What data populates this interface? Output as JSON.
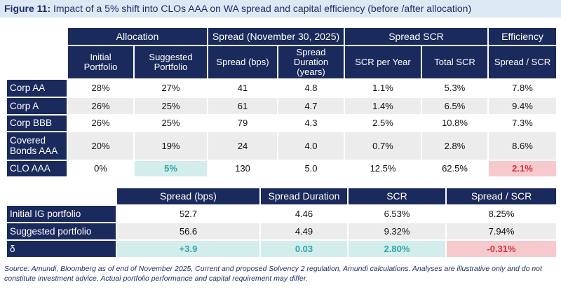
{
  "title": {
    "label": "Figure 11:",
    "text": "Impact of a 5% shift into CLOs AAA on WA spread and capital efficiency (before /after allocation)"
  },
  "table1": {
    "groups": [
      "Allocation",
      "Spread (November 30, 2025)",
      "Spread SCR",
      "Efficiency"
    ],
    "columns": [
      "Initial Portfolio",
      "Suggested Portfolio",
      "Spread (bps)",
      "Spread Duration (years)",
      "SCR per Year",
      "Total SCR",
      "Spread / SCR"
    ],
    "rows": [
      [
        "Corp AA",
        "28%",
        "27%",
        "41",
        "4.8",
        "1.1%",
        "5.3%",
        "7.8%"
      ],
      [
        "Corp A",
        "26%",
        "25%",
        "61",
        "4.7",
        "1.4%",
        "6.5%",
        "9.4%"
      ],
      [
        "Corp BBB",
        "26%",
        "25%",
        "79",
        "4.3",
        "2.5%",
        "10.8%",
        "7.3%"
      ],
      [
        "Covered Bonds AAA",
        "20%",
        "19%",
        "24",
        "4.0",
        "0.7%",
        "2.8%",
        "8.6%"
      ],
      [
        "CLO AAA",
        "0%",
        "5%",
        "130",
        "5.0",
        "12.5%",
        "62.5%",
        "2.1%"
      ]
    ]
  },
  "table2": {
    "columns": [
      "Spread (bps)",
      "Spread Duration",
      "SCR",
      "Spread / SCR"
    ],
    "rows": [
      [
        "Initial IG portfolio",
        "52.7",
        "4.46",
        "6.53%",
        "8.25%"
      ],
      [
        "Suggested portfolio",
        "56.6",
        "4.49",
        "9.32%",
        "7.94%"
      ],
      [
        "δ",
        "+3.9",
        "0.03",
        "2.80%",
        "-0.31%"
      ]
    ]
  },
  "footnote": "Source: Amundi, Bloomberg as of end of November 2025, Current and proposed Solvency 2 regulation, Amundi calculations. Analyses are illustrative only and do not constitute investment advice. Actual portfolio performance and capital requirement may differ."
}
